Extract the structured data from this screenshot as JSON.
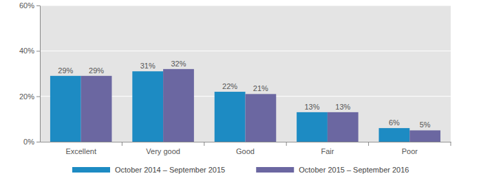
{
  "chart_data": {
    "type": "bar",
    "categories": [
      "Excellent",
      "Very good",
      "Good",
      "Fair",
      "Poor"
    ],
    "series": [
      {
        "name": "October 2014 – September 2015",
        "color": "#1d8bc3",
        "values": [
          29,
          31,
          22,
          13,
          6
        ],
        "value_labels": [
          "29%",
          "31%",
          "22%",
          "13%",
          "6%"
        ]
      },
      {
        "name": "October 2015 – September 2016",
        "color": "#6b67a1",
        "values": [
          29,
          32,
          21,
          13,
          5
        ],
        "value_labels": [
          "29%",
          "32%",
          "21%",
          "13%",
          "5%"
        ]
      }
    ],
    "ylim": [
      0,
      60
    ],
    "yticks": [
      {
        "value": 0,
        "label": "0%"
      },
      {
        "value": 20,
        "label": "20%"
      },
      {
        "value": 40,
        "label": "40%"
      },
      {
        "value": 60,
        "label": "60%"
      }
    ],
    "grid": true,
    "data_labels": true,
    "legend": "bottom"
  }
}
